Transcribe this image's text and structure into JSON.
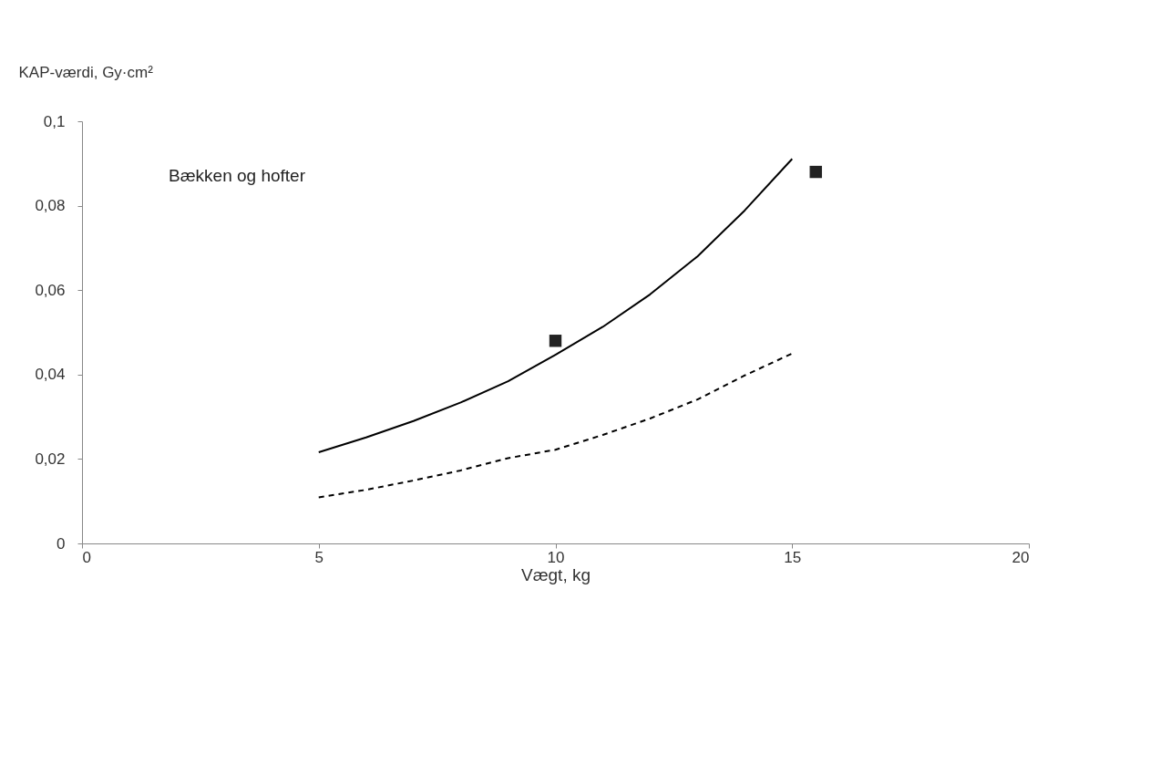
{
  "chart_data": {
    "type": "line",
    "xlabel": "Vægt, kg",
    "ylabel": "KAP-værdi, Gy·cm²",
    "annotations": [
      "Bækken og hofter"
    ],
    "series": [
      {
        "color": "#000000",
        "line_style": "solid",
        "x": [
          5,
          6,
          7,
          8,
          9,
          10,
          11,
          12,
          13,
          14,
          15
        ],
        "values": [
          0.0216,
          0.0251,
          0.029,
          0.0334,
          0.0384,
          0.0447,
          0.0513,
          0.059,
          0.068,
          0.0789,
          0.0911
        ]
      },
      {
        "color": "#000000",
        "line_style": "dashed",
        "x": [
          5,
          6,
          7,
          8,
          9,
          10,
          11,
          12,
          13,
          14,
          15
        ],
        "values": [
          0.0109,
          0.0127,
          0.0149,
          0.0173,
          0.0202,
          0.0222,
          0.0257,
          0.0296,
          0.0341,
          0.0398,
          0.045
        ]
      },
      {
        "type": "scatter",
        "color": "#222222",
        "marker": "square",
        "x": [
          10,
          15.5
        ],
        "values": [
          0.048,
          0.088
        ]
      }
    ],
    "xlim": [
      0,
      20
    ],
    "xticks": [
      0,
      5,
      10,
      15,
      20
    ],
    "ylim": [
      0,
      0.1
    ],
    "yticks": [
      {
        "value": 0,
        "label": "0"
      },
      {
        "value": 0.02,
        "label": "0,02"
      },
      {
        "value": 0.04,
        "label": "0,04"
      },
      {
        "value": 0.06,
        "label": "0,06"
      },
      {
        "value": 0.08,
        "label": "0,08"
      },
      {
        "value": 0.1,
        "label": "0,1"
      }
    ],
    "grid": false
  }
}
